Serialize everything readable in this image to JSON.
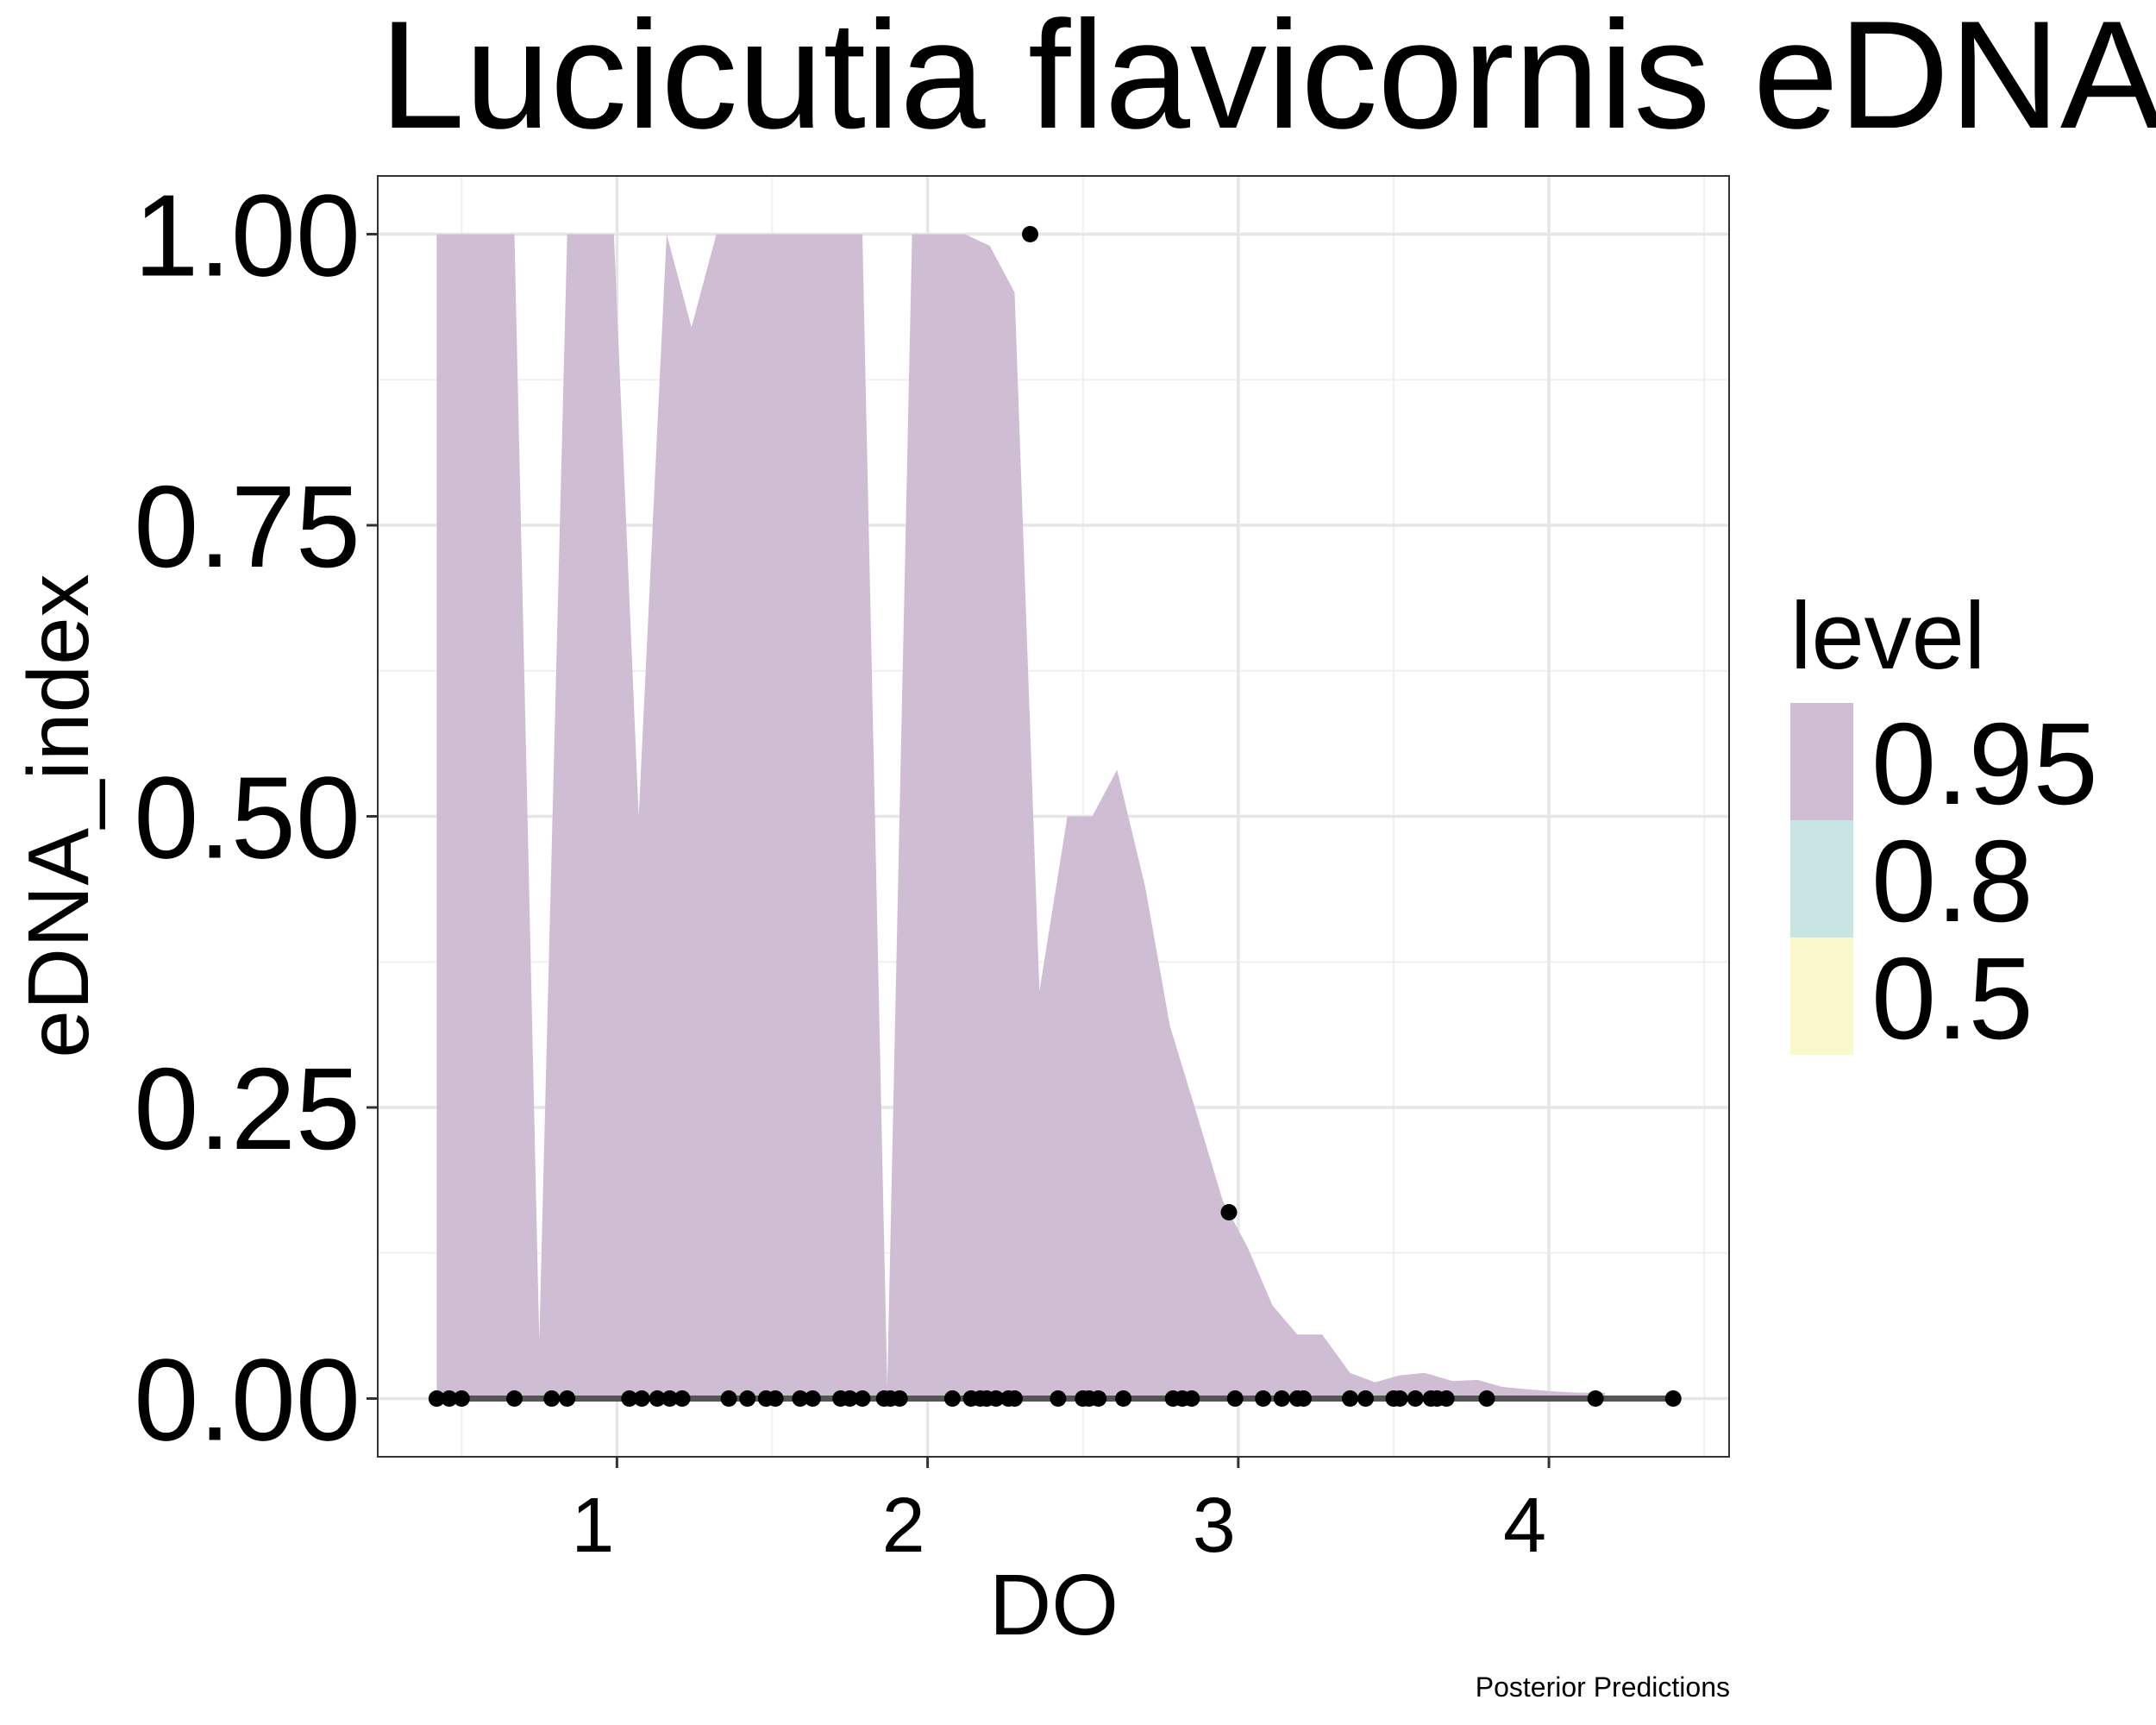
{
  "chart_data": {
    "type": "area",
    "title": "Lucicutia flavicornis eDNA In",
    "xlabel": "DO",
    "ylabel": "eDNA_index",
    "caption": "Posterior Predictions",
    "xlim": [
      0.23,
      4.58
    ],
    "ylim": [
      -0.05,
      1.05
    ],
    "x_ticks": [
      1,
      2,
      3,
      4
    ],
    "x_tick_labels": [
      "1",
      "2",
      "3",
      "4"
    ],
    "y_ticks": [
      0,
      0.25,
      0.5,
      0.75,
      1.0
    ],
    "y_tick_labels": [
      "0.00",
      "0.25",
      "0.50",
      "0.75",
      "1.00"
    ],
    "grid": true,
    "legend": {
      "title": "level",
      "position": "right",
      "entries": [
        {
          "label": "0.95",
          "color": "#cfbdd3"
        },
        {
          "label": "0.8",
          "color": "#c8e4e3"
        },
        {
          "label": "0.5",
          "color": "#fbf8cc"
        }
      ]
    },
    "interval_095": {
      "x": [
        0.42,
        0.67,
        0.75,
        0.84,
        0.99,
        1.07,
        1.16,
        1.24,
        1.32,
        1.79,
        1.87,
        1.95,
        2.12,
        2.2,
        2.28,
        2.36,
        2.45,
        2.53,
        2.61,
        2.7,
        2.78,
        2.86,
        2.95,
        3.03,
        3.11,
        3.19,
        3.27,
        3.36,
        3.44,
        3.52,
        3.6,
        3.69,
        3.77,
        3.85,
        3.93,
        4.02,
        4.1,
        4.18
      ],
      "upper": [
        1.0,
        1.0,
        0.05,
        1.0,
        1.0,
        0.5,
        1.0,
        0.92,
        1.0,
        1.0,
        0.01,
        1.0,
        1.0,
        0.99,
        0.95,
        0.35,
        0.5,
        0.5,
        0.54,
        0.44,
        0.32,
        0.25,
        0.17,
        0.13,
        0.08,
        0.055,
        0.055,
        0.022,
        0.014,
        0.02,
        0.022,
        0.015,
        0.016,
        0.01,
        0.008,
        0.006,
        0.005,
        0.005
      ],
      "lower": [
        0,
        0,
        0,
        0,
        0,
        0,
        0,
        0,
        0,
        0,
        0,
        0,
        0,
        0,
        0,
        0,
        0,
        0,
        0,
        0,
        0,
        0,
        0,
        0,
        0,
        0,
        0,
        0,
        0,
        0,
        0,
        0,
        0,
        0,
        0,
        0,
        0,
        0
      ]
    },
    "median_line": {
      "x": [
        0.42,
        4.4
      ],
      "y": [
        0,
        0
      ]
    },
    "observations": {
      "x": [
        0.42,
        0.46,
        0.5,
        0.67,
        0.79,
        0.84,
        1.04,
        1.08,
        1.13,
        1.17,
        1.21,
        1.36,
        1.42,
        1.48,
        1.51,
        1.59,
        1.63,
        1.72,
        1.75,
        1.79,
        1.86,
        1.88,
        1.91,
        2.08,
        2.14,
        2.17,
        2.19,
        2.22,
        2.26,
        2.28,
        2.33,
        2.42,
        2.5,
        2.52,
        2.55,
        2.63,
        2.79,
        2.82,
        2.85,
        2.97,
        2.99,
        3.08,
        3.14,
        3.19,
        3.21,
        3.36,
        3.41,
        3.5,
        3.52,
        3.57,
        3.62,
        3.64,
        3.67,
        3.8,
        4.15,
        4.4
      ],
      "y": [
        0,
        0,
        0,
        0,
        0,
        0,
        0,
        0,
        0,
        0,
        0,
        0,
        0,
        0,
        0,
        0,
        0,
        0,
        0,
        0,
        0,
        0,
        0,
        0,
        0,
        0,
        0,
        0,
        0,
        0,
        1.0,
        0,
        0,
        0,
        0,
        0,
        0,
        0,
        0,
        0.16,
        0,
        0,
        0,
        0,
        0,
        0,
        0,
        0,
        0,
        0,
        0,
        0,
        0,
        0,
        0,
        0
      ]
    }
  }
}
